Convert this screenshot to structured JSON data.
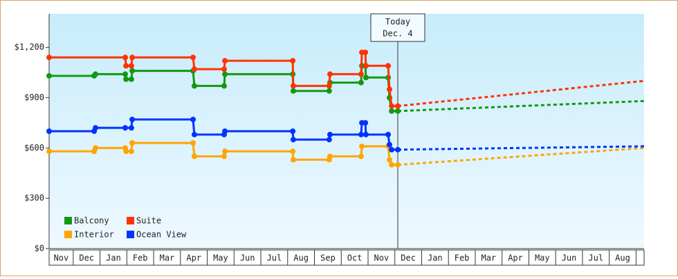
{
  "chart_data": {
    "type": "line",
    "categories": [
      "Nov",
      "Dec",
      "Jan",
      "Feb",
      "Mar",
      "Apr",
      "May",
      "Jun",
      "Jul",
      "Aug",
      "Sep",
      "Oct",
      "Nov",
      "Dec",
      "Jan",
      "Feb",
      "Mar",
      "Apr",
      "May",
      "Jun",
      "Jul",
      "Aug"
    ],
    "xlim": [
      0.1,
      22.3
    ],
    "ylim": [
      0,
      1400
    ],
    "yticks": [
      {
        "value": 0,
        "label": "$0"
      },
      {
        "value": 300,
        "label": "$300"
      },
      {
        "value": 600,
        "label": "$600"
      },
      {
        "value": 900,
        "label": "$900"
      },
      {
        "value": 1200,
        "label": "$1,200"
      }
    ],
    "annotation": {
      "x": 13.11,
      "lines": [
        "Today",
        "Dec. 4"
      ]
    },
    "series": [
      {
        "name": "Balcony",
        "color": "#119911",
        "x": [
          0.1,
          1.78,
          1.83,
          2.94,
          2.97,
          3.17,
          3.2,
          5.47,
          5.52,
          6.63,
          6.66,
          9.19,
          9.21,
          10.55,
          10.58,
          11.74,
          11.77,
          11.9,
          11.92,
          12.75,
          12.8,
          12.88,
          13.11
        ],
        "values": [
          1030,
          1030,
          1040,
          1040,
          1010,
          1010,
          1060,
          1060,
          970,
          970,
          1040,
          1040,
          940,
          940,
          990,
          990,
          1090,
          1090,
          1020,
          1020,
          900,
          820,
          820
        ],
        "projection": {
          "x": [
            13.11,
            22.3
          ],
          "values": [
            820,
            880
          ]
        }
      },
      {
        "name": "Suite",
        "color": "#ff3300",
        "x": [
          0.1,
          2.94,
          2.97,
          3.17,
          3.2,
          5.47,
          5.52,
          6.63,
          6.66,
          9.19,
          9.21,
          10.55,
          10.58,
          11.74,
          11.77,
          11.9,
          11.92,
          12.75,
          12.8,
          12.88,
          13.11
        ],
        "values": [
          1140,
          1140,
          1090,
          1090,
          1140,
          1140,
          1070,
          1070,
          1120,
          1120,
          970,
          970,
          1040,
          1040,
          1170,
          1170,
          1090,
          1090,
          950,
          850,
          850
        ],
        "projection": {
          "x": [
            13.11,
            22.3
          ],
          "values": [
            850,
            1000
          ]
        }
      },
      {
        "name": "Interior",
        "color": "#ffa500",
        "x": [
          0.1,
          1.78,
          1.83,
          2.94,
          2.97,
          3.17,
          3.2,
          5.47,
          5.52,
          6.63,
          6.66,
          9.19,
          9.21,
          10.55,
          10.58,
          11.74,
          11.77,
          12.75,
          12.8,
          12.88,
          13.11
        ],
        "values": [
          580,
          580,
          600,
          600,
          580,
          580,
          630,
          630,
          550,
          550,
          580,
          580,
          530,
          530,
          550,
          550,
          610,
          610,
          530,
          500,
          500
        ],
        "projection": {
          "x": [
            13.11,
            22.3
          ],
          "values": [
            500,
            600
          ]
        }
      },
      {
        "name": "Ocean View",
        "color": "#0033ff",
        "x": [
          0.1,
          1.78,
          1.83,
          2.94,
          3.17,
          3.2,
          5.47,
          5.52,
          6.63,
          6.66,
          9.19,
          9.21,
          10.55,
          10.58,
          11.74,
          11.77,
          11.9,
          11.92,
          12.75,
          12.8,
          12.88,
          13.11
        ],
        "values": [
          700,
          700,
          720,
          720,
          720,
          770,
          770,
          680,
          680,
          700,
          700,
          650,
          650,
          680,
          680,
          750,
          750,
          680,
          680,
          620,
          590,
          590
        ],
        "projection": {
          "x": [
            13.11,
            22.3
          ],
          "values": [
            590,
            610
          ]
        }
      }
    ]
  }
}
